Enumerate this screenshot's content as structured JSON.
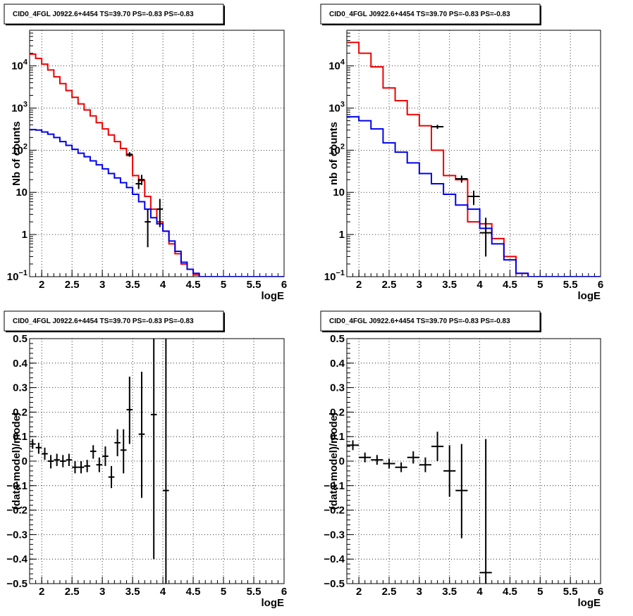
{
  "chart_data": [
    {
      "type": "line",
      "title": "CID0_4FGL J0922.6+4454 TS=39.70 PS=-0.83 PS=-0.83",
      "xlabel": "logE",
      "ylabel": "Nb of counts",
      "yscale": "log",
      "xlim": [
        1.8,
        6
      ],
      "ylim": [
        0.1,
        70000
      ],
      "grid": true,
      "xticks": [
        "2",
        "2.5",
        "3",
        "3.5",
        "4",
        "4.5",
        "5",
        "5.5",
        "6"
      ],
      "yticks": [
        "10^-1",
        "1",
        "10",
        "10^2",
        "10^3",
        "10^4"
      ],
      "bin_width": 0.1,
      "series": [
        {
          "kind": "step",
          "color": "#ee0000",
          "x": [
            1.8,
            1.9,
            2.0,
            2.1,
            2.2,
            2.3,
            2.4,
            2.5,
            2.6,
            2.7,
            2.8,
            2.9,
            3.0,
            3.1,
            3.2,
            3.3,
            3.4,
            3.5,
            3.6,
            3.7,
            3.8,
            3.9,
            4.0,
            4.1,
            4.2,
            4.3,
            4.4,
            4.5
          ],
          "values": [
            19000,
            15000,
            11000,
            8000,
            5500,
            3800,
            2600,
            1800,
            1250,
            900,
            650,
            450,
            320,
            230,
            160,
            110,
            75,
            25,
            19,
            8,
            4,
            2,
            1.2,
            0.6,
            0.35,
            0.2,
            0.15,
            0.11
          ]
        },
        {
          "kind": "step",
          "color": "#0000ee",
          "x": [
            1.8,
            1.9,
            2.0,
            2.1,
            2.2,
            2.3,
            2.4,
            2.5,
            2.6,
            2.7,
            2.8,
            2.9,
            3.0,
            3.1,
            3.2,
            3.3,
            3.4,
            3.5,
            3.6,
            3.7,
            3.8,
            3.9,
            4.0,
            4.1,
            4.2,
            4.3,
            4.4,
            4.5,
            4.6,
            4.7,
            4.8,
            4.9,
            5.0,
            5.1,
            5.2,
            5.3,
            5.4,
            5.5,
            5.6,
            5.7,
            5.8,
            5.9
          ],
          "values": [
            310,
            300,
            270,
            240,
            200,
            160,
            130,
            105,
            85,
            70,
            56,
            45,
            36,
            28,
            22,
            17,
            13,
            9,
            6,
            4,
            2.5,
            1.8,
            1.2,
            0.7,
            0.4,
            0.22,
            0.15,
            0.12,
            0.1,
            0.1,
            0.1,
            0.1,
            0.1,
            0.1,
            0.1,
            0.1,
            0.1,
            0.1,
            0.1,
            0.1,
            0.1,
            0.1
          ]
        },
        {
          "kind": "points",
          "color": "#000000",
          "x": [
            3.45,
            3.6,
            3.65,
            3.75,
            3.95
          ],
          "y": [
            80,
            16,
            20,
            2,
            4
          ],
          "yerr_low": [
            70,
            12,
            15,
            0.5,
            1.5
          ],
          "yerr_high": [
            90,
            21,
            26,
            4,
            7
          ],
          "xerr": 0.05
        }
      ]
    },
    {
      "type": "line",
      "title": "CID0_4FGL J0922.6+4454 TS=39.70 PS=-0.83 PS=-0.83",
      "xlabel": "logE",
      "ylabel": "nb of counts",
      "yscale": "log",
      "xlim": [
        1.8,
        6
      ],
      "ylim": [
        0.1,
        70000
      ],
      "grid": true,
      "xticks": [
        "2",
        "2.5",
        "3",
        "3.5",
        "4",
        "4.5",
        "5",
        "5.5",
        "6"
      ],
      "yticks": [
        "10^-1",
        "1",
        "10",
        "10^2",
        "10^3",
        "10^4"
      ],
      "bin_width": 0.2,
      "series": [
        {
          "kind": "step",
          "color": "#ee0000",
          "x": [
            1.8,
            2.0,
            2.2,
            2.4,
            2.6,
            2.8,
            3.0,
            3.2,
            3.4,
            3.6,
            3.8,
            4.0,
            4.2,
            4.4,
            4.6
          ],
          "values": [
            36000,
            20000,
            9500,
            3000,
            1500,
            700,
            380,
            100,
            25,
            20,
            2,
            1.8,
            0.8,
            0.3,
            0.12
          ]
        },
        {
          "kind": "step",
          "color": "#0000ee",
          "x": [
            1.8,
            2.0,
            2.2,
            2.4,
            2.6,
            2.8,
            3.0,
            3.2,
            3.4,
            3.6,
            3.8,
            4.0,
            4.2,
            4.4,
            4.6,
            4.8,
            5.0,
            5.2,
            5.4,
            5.6,
            5.8
          ],
          "values": [
            620,
            500,
            320,
            150,
            90,
            50,
            28,
            16,
            9,
            5,
            4,
            1.4,
            0.6,
            0.25,
            0.12,
            0.1,
            0.1,
            0.1,
            0.1,
            0.1,
            0.1
          ]
        },
        {
          "kind": "points",
          "color": "#000000",
          "x": [
            3.3,
            3.7,
            3.9,
            4.1
          ],
          "y": [
            360,
            21,
            8,
            1.1
          ],
          "yerr_low": [
            320,
            17,
            5,
            0.3
          ],
          "yerr_high": [
            400,
            25,
            11,
            2.5
          ],
          "xerr": 0.1
        }
      ]
    },
    {
      "type": "scatter",
      "title": "CID0_4FGL J0922.6+4454 TS=39.70 PS=-0.83 PS=-0.83",
      "xlabel": "logE",
      "ylabel": "(data-model)/model",
      "xlim": [
        1.8,
        6
      ],
      "ylim": [
        -0.5,
        0.5
      ],
      "grid": true,
      "xticks": [
        "2",
        "2.5",
        "3",
        "3.5",
        "4",
        "4.5",
        "5",
        "5.5",
        "6"
      ],
      "yticks": [
        "−0.5",
        "−0.4",
        "−0.3",
        "−0.2",
        "−0.1",
        "0",
        "0.1",
        "0.2",
        "0.3",
        "0.4",
        "0.5"
      ],
      "xerr": 0.05,
      "points": [
        {
          "x": 1.85,
          "y": 0.07,
          "lo": 0.05,
          "hi": 0.09
        },
        {
          "x": 1.95,
          "y": 0.055,
          "lo": 0.03,
          "hi": 0.075
        },
        {
          "x": 2.05,
          "y": 0.03,
          "lo": 0.005,
          "hi": 0.055
        },
        {
          "x": 2.15,
          "y": 0.0,
          "lo": -0.03,
          "hi": 0.025
        },
        {
          "x": 2.25,
          "y": 0.005,
          "lo": -0.02,
          "hi": 0.03
        },
        {
          "x": 2.35,
          "y": 0.0,
          "lo": -0.025,
          "hi": 0.025
        },
        {
          "x": 2.45,
          "y": 0.005,
          "lo": -0.02,
          "hi": 0.03
        },
        {
          "x": 2.55,
          "y": -0.025,
          "lo": -0.05,
          "hi": 0.0
        },
        {
          "x": 2.65,
          "y": -0.025,
          "lo": -0.05,
          "hi": 0.0
        },
        {
          "x": 2.75,
          "y": -0.02,
          "lo": -0.045,
          "hi": 0.005
        },
        {
          "x": 2.85,
          "y": 0.04,
          "lo": 0.01,
          "hi": 0.065
        },
        {
          "x": 2.95,
          "y": -0.015,
          "lo": -0.045,
          "hi": 0.015
        },
        {
          "x": 3.05,
          "y": 0.02,
          "lo": -0.02,
          "hi": 0.06
        },
        {
          "x": 3.15,
          "y": -0.065,
          "lo": -0.11,
          "hi": -0.02
        },
        {
          "x": 3.25,
          "y": 0.075,
          "lo": 0.02,
          "hi": 0.13
        },
        {
          "x": 3.35,
          "y": 0.045,
          "lo": -0.05,
          "hi": 0.13
        },
        {
          "x": 3.45,
          "y": 0.21,
          "lo": 0.07,
          "hi": 0.345
        },
        {
          "x": 3.65,
          "y": 0.11,
          "lo": -0.15,
          "hi": 0.365
        },
        {
          "x": 3.85,
          "y": 0.19,
          "lo": -0.4,
          "hi": 0.5
        },
        {
          "x": 4.05,
          "y": -0.12,
          "lo": -0.5,
          "hi": 0.5
        }
      ]
    },
    {
      "type": "scatter",
      "title": "CID0_4FGL J0922.6+4454 TS=39.70 PS=-0.83 PS=-0.83",
      "xlabel": "logE",
      "ylabel": "(data-model)/model",
      "xlim": [
        1.8,
        6
      ],
      "ylim": [
        -0.5,
        0.5
      ],
      "grid": true,
      "xticks": [
        "2",
        "2.5",
        "3",
        "3.5",
        "4",
        "4.5",
        "5",
        "5.5",
        "6"
      ],
      "yticks": [
        "−0.5",
        "−0.4",
        "−0.3",
        "−0.2",
        "−0.1",
        "0",
        "0.1",
        "0.2",
        "0.3",
        "0.4",
        "0.5"
      ],
      "xerr": 0.1,
      "points": [
        {
          "x": 1.9,
          "y": 0.065,
          "lo": 0.045,
          "hi": 0.085
        },
        {
          "x": 2.1,
          "y": 0.015,
          "lo": -0.005,
          "hi": 0.035
        },
        {
          "x": 2.3,
          "y": 0.005,
          "lo": -0.015,
          "hi": 0.025
        },
        {
          "x": 2.5,
          "y": -0.01,
          "lo": -0.03,
          "hi": 0.01
        },
        {
          "x": 2.7,
          "y": -0.025,
          "lo": -0.045,
          "hi": -0.005
        },
        {
          "x": 2.9,
          "y": 0.015,
          "lo": -0.01,
          "hi": 0.04
        },
        {
          "x": 3.1,
          "y": -0.015,
          "lo": -0.045,
          "hi": 0.015
        },
        {
          "x": 3.3,
          "y": 0.06,
          "lo": 0.0,
          "hi": 0.12
        },
        {
          "x": 3.5,
          "y": -0.04,
          "lo": -0.145,
          "hi": 0.065
        },
        {
          "x": 3.7,
          "y": -0.12,
          "lo": -0.315,
          "hi": 0.07
        },
        {
          "x": 4.1,
          "y": -0.455,
          "lo": -0.5,
          "hi": 0.09
        }
      ]
    }
  ]
}
